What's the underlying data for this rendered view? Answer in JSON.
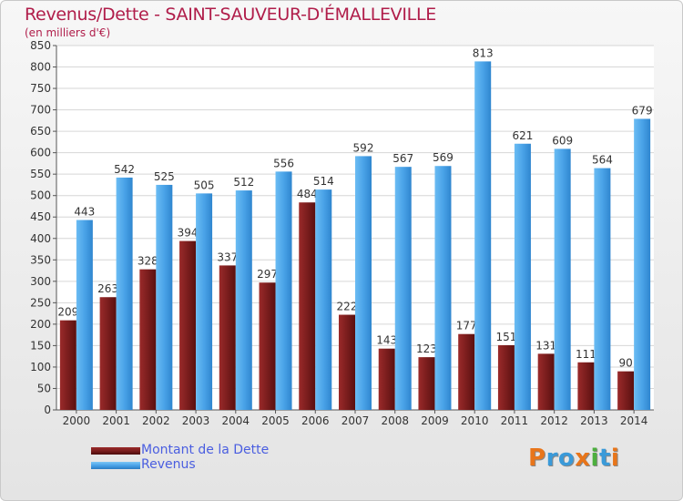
{
  "chart_data": {
    "type": "bar",
    "title": "Revenus/Dette - SAINT-SAUVEUR-D'ÉMALLEVILLE",
    "subtitle": "(en milliers d'€)",
    "categories": [
      "2000",
      "2001",
      "2002",
      "2003",
      "2004",
      "2005",
      "2006",
      "2007",
      "2008",
      "2009",
      "2010",
      "2011",
      "2012",
      "2013",
      "2014"
    ],
    "series": [
      {
        "name": "Montant de la Dette",
        "color": "#7a1d1d",
        "values": [
          209,
          263,
          328,
          394,
          337,
          297,
          484,
          222,
          143,
          123,
          177,
          151,
          131,
          111,
          90
        ]
      },
      {
        "name": "Revenus",
        "color": "#4aa3e8",
        "values": [
          443,
          542,
          525,
          505,
          512,
          556,
          514,
          592,
          567,
          569,
          813,
          621,
          609,
          564,
          679
        ]
      }
    ],
    "ylim": [
      0,
      850
    ],
    "yticks": [
      0,
      50,
      100,
      150,
      200,
      250,
      300,
      350,
      400,
      450,
      500,
      550,
      600,
      650,
      700,
      750,
      800,
      850
    ],
    "grid": true,
    "legend_position": "bottom-left"
  },
  "logo": {
    "letters": [
      "P",
      "r",
      "o",
      "x",
      "i",
      "t",
      "i"
    ],
    "colors": [
      "#e8751a",
      "#3a9ad9",
      "#3a9ad9",
      "#e8751a",
      "#4caf3e",
      "#3a9ad9",
      "#e8751a"
    ]
  }
}
